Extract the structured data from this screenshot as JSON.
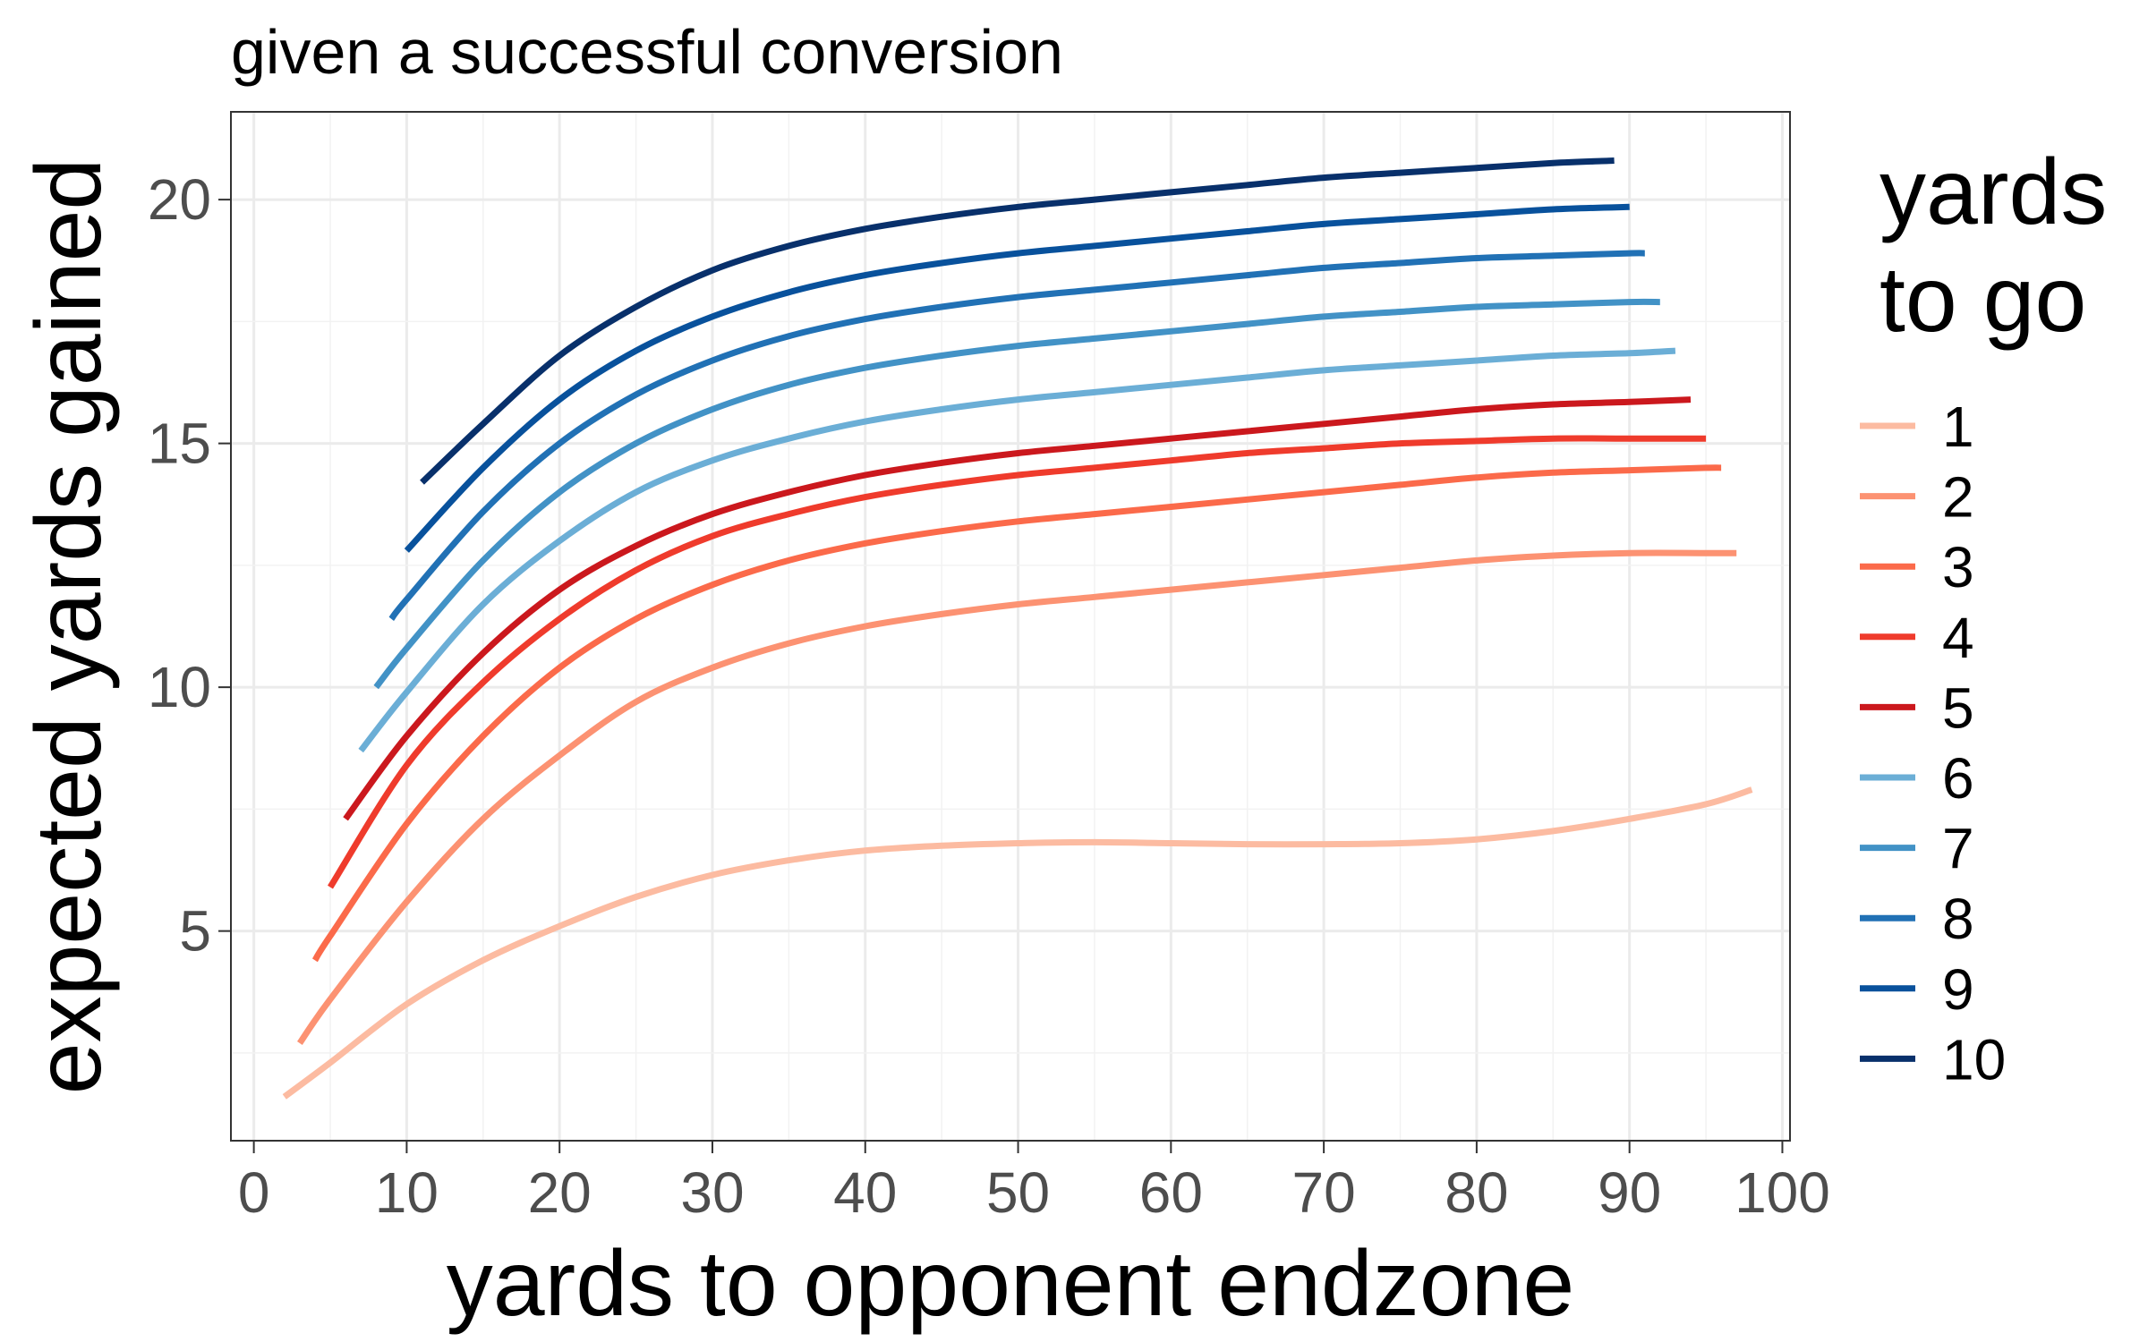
{
  "chart_data": {
    "type": "line",
    "title": "given a successful conversion",
    "xlabel": "yards to opponent endzone",
    "ylabel": "expected yards gained",
    "xlim": [
      -1.5,
      100.5
    ],
    "ylim": [
      0.7,
      21.8
    ],
    "x_ticks": [
      0,
      10,
      20,
      30,
      40,
      50,
      60,
      70,
      80,
      90,
      100
    ],
    "y_ticks": [
      5,
      10,
      15,
      20
    ],
    "grid": true,
    "legend": {
      "title_lines": [
        "yards",
        "to go"
      ],
      "placement": "right"
    },
    "series": [
      {
        "name": "1",
        "color": "#fcbba1",
        "points": [
          [
            2,
            1.6
          ],
          [
            5,
            2.3
          ],
          [
            10,
            3.5
          ],
          [
            15,
            4.4
          ],
          [
            20,
            5.1
          ],
          [
            25,
            5.7
          ],
          [
            30,
            6.15
          ],
          [
            35,
            6.45
          ],
          [
            40,
            6.65
          ],
          [
            45,
            6.75
          ],
          [
            50,
            6.8
          ],
          [
            55,
            6.82
          ],
          [
            60,
            6.8
          ],
          [
            65,
            6.78
          ],
          [
            70,
            6.78
          ],
          [
            75,
            6.8
          ],
          [
            80,
            6.88
          ],
          [
            85,
            7.05
          ],
          [
            90,
            7.3
          ],
          [
            95,
            7.6
          ],
          [
            98,
            7.9
          ]
        ]
      },
      {
        "name": "2",
        "color": "#fc9272",
        "points": [
          [
            3,
            2.7
          ],
          [
            5,
            3.6
          ],
          [
            10,
            5.6
          ],
          [
            15,
            7.3
          ],
          [
            20,
            8.6
          ],
          [
            25,
            9.7
          ],
          [
            30,
            10.4
          ],
          [
            35,
            10.9
          ],
          [
            40,
            11.25
          ],
          [
            45,
            11.5
          ],
          [
            50,
            11.7
          ],
          [
            55,
            11.85
          ],
          [
            60,
            12.0
          ],
          [
            65,
            12.15
          ],
          [
            70,
            12.3
          ],
          [
            75,
            12.45
          ],
          [
            80,
            12.6
          ],
          [
            85,
            12.7
          ],
          [
            90,
            12.75
          ],
          [
            95,
            12.75
          ],
          [
            97,
            12.75
          ]
        ]
      },
      {
        "name": "3",
        "color": "#fb6a4a",
        "points": [
          [
            4,
            4.4
          ],
          [
            5,
            4.9
          ],
          [
            10,
            7.2
          ],
          [
            15,
            9.0
          ],
          [
            20,
            10.4
          ],
          [
            25,
            11.4
          ],
          [
            30,
            12.1
          ],
          [
            35,
            12.6
          ],
          [
            40,
            12.95
          ],
          [
            45,
            13.2
          ],
          [
            50,
            13.4
          ],
          [
            55,
            13.55
          ],
          [
            60,
            13.7
          ],
          [
            65,
            13.85
          ],
          [
            70,
            14.0
          ],
          [
            75,
            14.15
          ],
          [
            80,
            14.3
          ],
          [
            85,
            14.4
          ],
          [
            90,
            14.45
          ],
          [
            95,
            14.5
          ],
          [
            96,
            14.5
          ]
        ]
      },
      {
        "name": "4",
        "color": "#ef3b2c",
        "points": [
          [
            5,
            5.9
          ],
          [
            10,
            8.4
          ],
          [
            15,
            10.1
          ],
          [
            20,
            11.4
          ],
          [
            25,
            12.4
          ],
          [
            30,
            13.1
          ],
          [
            35,
            13.55
          ],
          [
            40,
            13.9
          ],
          [
            45,
            14.15
          ],
          [
            50,
            14.35
          ],
          [
            55,
            14.5
          ],
          [
            60,
            14.65
          ],
          [
            65,
            14.8
          ],
          [
            70,
            14.9
          ],
          [
            75,
            15.0
          ],
          [
            80,
            15.05
          ],
          [
            85,
            15.1
          ],
          [
            90,
            15.1
          ],
          [
            95,
            15.1
          ]
        ]
      },
      {
        "name": "5",
        "color": "#cb181d",
        "points": [
          [
            6,
            7.3
          ],
          [
            10,
            9.0
          ],
          [
            15,
            10.7
          ],
          [
            20,
            12.0
          ],
          [
            25,
            12.9
          ],
          [
            30,
            13.55
          ],
          [
            35,
            14.0
          ],
          [
            40,
            14.35
          ],
          [
            45,
            14.6
          ],
          [
            50,
            14.8
          ],
          [
            55,
            14.95
          ],
          [
            60,
            15.1
          ],
          [
            65,
            15.25
          ],
          [
            70,
            15.4
          ],
          [
            75,
            15.55
          ],
          [
            80,
            15.7
          ],
          [
            85,
            15.8
          ],
          [
            90,
            15.85
          ],
          [
            94,
            15.9
          ]
        ]
      },
      {
        "name": "6",
        "color": "#6baed6",
        "points": [
          [
            7,
            8.7
          ],
          [
            10,
            9.9
          ],
          [
            15,
            11.7
          ],
          [
            20,
            13.0
          ],
          [
            25,
            14.0
          ],
          [
            30,
            14.65
          ],
          [
            35,
            15.1
          ],
          [
            40,
            15.45
          ],
          [
            45,
            15.7
          ],
          [
            50,
            15.9
          ],
          [
            55,
            16.05
          ],
          [
            60,
            16.2
          ],
          [
            65,
            16.35
          ],
          [
            70,
            16.5
          ],
          [
            75,
            16.6
          ],
          [
            80,
            16.7
          ],
          [
            85,
            16.8
          ],
          [
            90,
            16.85
          ],
          [
            93,
            16.9
          ]
        ]
      },
      {
        "name": "7",
        "color": "#4292c6",
        "points": [
          [
            8,
            10.0
          ],
          [
            10,
            10.8
          ],
          [
            15,
            12.6
          ],
          [
            20,
            14.0
          ],
          [
            25,
            15.0
          ],
          [
            30,
            15.7
          ],
          [
            35,
            16.2
          ],
          [
            40,
            16.55
          ],
          [
            45,
            16.8
          ],
          [
            50,
            17.0
          ],
          [
            55,
            17.15
          ],
          [
            60,
            17.3
          ],
          [
            65,
            17.45
          ],
          [
            70,
            17.6
          ],
          [
            75,
            17.7
          ],
          [
            80,
            17.8
          ],
          [
            85,
            17.85
          ],
          [
            90,
            17.9
          ],
          [
            92,
            17.9
          ]
        ]
      },
      {
        "name": "8",
        "color": "#2171b5",
        "points": [
          [
            9,
            11.4
          ],
          [
            10,
            11.8
          ],
          [
            15,
            13.6
          ],
          [
            20,
            15.0
          ],
          [
            25,
            16.0
          ],
          [
            30,
            16.7
          ],
          [
            35,
            17.2
          ],
          [
            40,
            17.55
          ],
          [
            45,
            17.8
          ],
          [
            50,
            18.0
          ],
          [
            55,
            18.15
          ],
          [
            60,
            18.3
          ],
          [
            65,
            18.45
          ],
          [
            70,
            18.6
          ],
          [
            75,
            18.7
          ],
          [
            80,
            18.8
          ],
          [
            85,
            18.85
          ],
          [
            90,
            18.9
          ],
          [
            91,
            18.9
          ]
        ]
      },
      {
        "name": "9",
        "color": "#08519c",
        "points": [
          [
            10,
            12.8
          ],
          [
            15,
            14.5
          ],
          [
            20,
            15.9
          ],
          [
            25,
            16.9
          ],
          [
            30,
            17.6
          ],
          [
            35,
            18.1
          ],
          [
            40,
            18.45
          ],
          [
            45,
            18.7
          ],
          [
            50,
            18.9
          ],
          [
            55,
            19.05
          ],
          [
            60,
            19.2
          ],
          [
            65,
            19.35
          ],
          [
            70,
            19.5
          ],
          [
            75,
            19.6
          ],
          [
            80,
            19.7
          ],
          [
            85,
            19.8
          ],
          [
            90,
            19.85
          ]
        ]
      },
      {
        "name": "10",
        "color": "#08306b",
        "points": [
          [
            11,
            14.2
          ],
          [
            15,
            15.4
          ],
          [
            20,
            16.8
          ],
          [
            25,
            17.8
          ],
          [
            30,
            18.55
          ],
          [
            35,
            19.05
          ],
          [
            40,
            19.4
          ],
          [
            45,
            19.65
          ],
          [
            50,
            19.85
          ],
          [
            55,
            20.0
          ],
          [
            60,
            20.15
          ],
          [
            65,
            20.3
          ],
          [
            70,
            20.45
          ],
          [
            75,
            20.55
          ],
          [
            80,
            20.65
          ],
          [
            85,
            20.75
          ],
          [
            89,
            20.8
          ]
        ]
      }
    ]
  }
}
